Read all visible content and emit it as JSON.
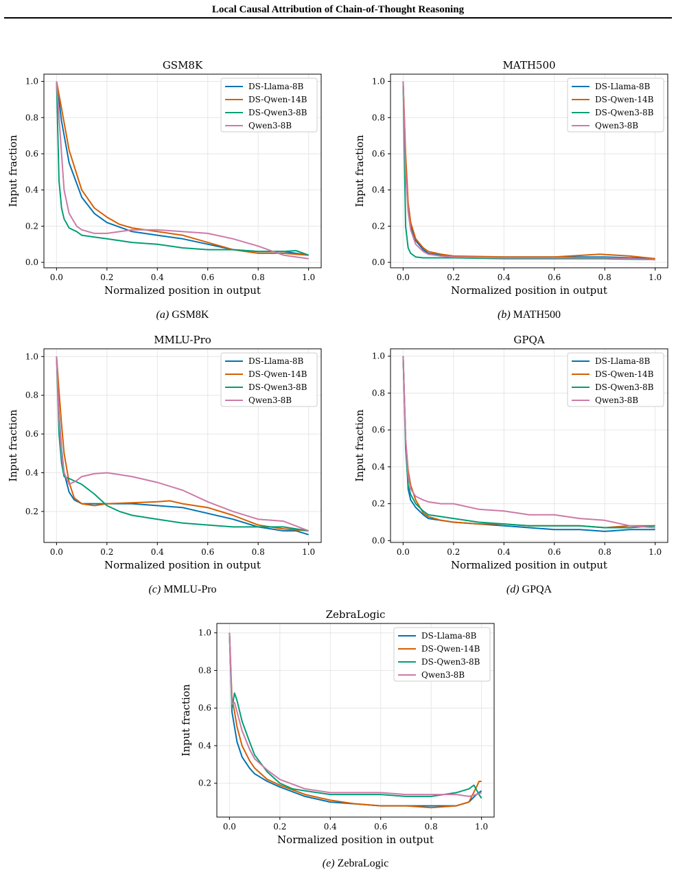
{
  "header": {
    "title": "Local Causal Attribution of Chain-of-Thought Reasoning"
  },
  "colors": {
    "DS-Llama-8B": "#0072b2",
    "DS-Qwen-14B": "#d55e00",
    "DS-Qwen3-8B": "#009e73",
    "Qwen3-8B": "#cc79a7"
  },
  "chart_data": [
    {
      "type": "line",
      "title": "GSM8K",
      "caption_letter": "(a)",
      "caption_text": "GSM8K",
      "xlabel": "Normalized position in output",
      "ylabel": "Input fraction",
      "xlim": [
        -0.05,
        1.05
      ],
      "ylim": [
        -0.03,
        1.04
      ],
      "xticks": [
        "0.0",
        "0.2",
        "0.4",
        "0.6",
        "0.8",
        "1.0"
      ],
      "yticks": [
        "0.0",
        "0.2",
        "0.4",
        "0.6",
        "0.8",
        "1.0"
      ],
      "grid": true,
      "legend": "top-right",
      "series": [
        {
          "name": "DS-Llama-8B",
          "x": [
            0,
            0.02,
            0.05,
            0.1,
            0.15,
            0.2,
            0.3,
            0.4,
            0.5,
            0.6,
            0.7,
            0.8,
            0.9,
            1.0
          ],
          "y": [
            1.0,
            0.78,
            0.55,
            0.36,
            0.27,
            0.22,
            0.17,
            0.15,
            0.13,
            0.1,
            0.07,
            0.06,
            0.06,
            0.04
          ]
        },
        {
          "name": "DS-Qwen-14B",
          "x": [
            0,
            0.02,
            0.05,
            0.1,
            0.15,
            0.2,
            0.25,
            0.3,
            0.4,
            0.5,
            0.6,
            0.7,
            0.8,
            0.9,
            1.0
          ],
          "y": [
            1.0,
            0.85,
            0.62,
            0.4,
            0.3,
            0.25,
            0.21,
            0.19,
            0.17,
            0.15,
            0.11,
            0.07,
            0.05,
            0.05,
            0.04
          ]
        },
        {
          "name": "DS-Qwen3-8B",
          "x": [
            0,
            0.01,
            0.02,
            0.03,
            0.05,
            0.08,
            0.1,
            0.15,
            0.2,
            0.3,
            0.4,
            0.5,
            0.6,
            0.7,
            0.8,
            0.9,
            0.95,
            1.0
          ],
          "y": [
            1.0,
            0.45,
            0.3,
            0.24,
            0.19,
            0.17,
            0.15,
            0.14,
            0.13,
            0.11,
            0.1,
            0.08,
            0.07,
            0.07,
            0.06,
            0.06,
            0.065,
            0.04
          ]
        },
        {
          "name": "Qwen3-8B",
          "x": [
            0,
            0.02,
            0.03,
            0.05,
            0.08,
            0.1,
            0.15,
            0.2,
            0.3,
            0.4,
            0.5,
            0.6,
            0.7,
            0.8,
            0.9,
            0.95,
            1.0
          ],
          "y": [
            1.0,
            0.6,
            0.4,
            0.27,
            0.2,
            0.18,
            0.16,
            0.16,
            0.18,
            0.18,
            0.17,
            0.16,
            0.13,
            0.09,
            0.04,
            0.03,
            0.02
          ]
        }
      ]
    },
    {
      "type": "line",
      "title": "MATH500",
      "caption_letter": "(b)",
      "caption_text": "MATH500",
      "xlabel": "Normalized position in output",
      "ylabel": "Input fraction",
      "xlim": [
        -0.05,
        1.05
      ],
      "ylim": [
        -0.03,
        1.04
      ],
      "xticks": [
        "0.0",
        "0.2",
        "0.4",
        "0.6",
        "0.8",
        "1.0"
      ],
      "yticks": [
        "0.0",
        "0.2",
        "0.4",
        "0.6",
        "0.8",
        "1.0"
      ],
      "grid": true,
      "legend": "top-right",
      "series": [
        {
          "name": "DS-Llama-8B",
          "x": [
            0,
            0.01,
            0.02,
            0.03,
            0.05,
            0.08,
            0.1,
            0.15,
            0.2,
            0.4,
            0.6,
            0.8,
            0.9,
            1.0
          ],
          "y": [
            1.0,
            0.55,
            0.3,
            0.2,
            0.12,
            0.07,
            0.05,
            0.04,
            0.03,
            0.03,
            0.03,
            0.03,
            0.025,
            0.02
          ]
        },
        {
          "name": "DS-Qwen-14B",
          "x": [
            0,
            0.01,
            0.02,
            0.03,
            0.05,
            0.08,
            0.1,
            0.15,
            0.2,
            0.4,
            0.6,
            0.78,
            0.9,
            1.0
          ],
          "y": [
            1.0,
            0.6,
            0.33,
            0.22,
            0.13,
            0.08,
            0.06,
            0.045,
            0.035,
            0.03,
            0.03,
            0.045,
            0.035,
            0.02
          ]
        },
        {
          "name": "DS-Qwen3-8B",
          "x": [
            0,
            0.01,
            0.02,
            0.03,
            0.05,
            0.08,
            0.1,
            0.2,
            0.4,
            0.6,
            0.8,
            1.0
          ],
          "y": [
            1.0,
            0.2,
            0.08,
            0.05,
            0.03,
            0.025,
            0.025,
            0.025,
            0.02,
            0.02,
            0.02,
            0.015
          ]
        },
        {
          "name": "Qwen3-8B",
          "x": [
            0,
            0.01,
            0.02,
            0.03,
            0.05,
            0.08,
            0.1,
            0.15,
            0.2,
            0.4,
            0.6,
            0.8,
            0.9,
            1.0
          ],
          "y": [
            1.0,
            0.5,
            0.28,
            0.18,
            0.1,
            0.06,
            0.045,
            0.035,
            0.03,
            0.025,
            0.025,
            0.025,
            0.02,
            0.015
          ]
        }
      ]
    },
    {
      "type": "line",
      "title": "MMLU-Pro",
      "caption_letter": "(c)",
      "caption_text": "MMLU-Pro",
      "xlabel": "Normalized position in output",
      "ylabel": "Input fraction",
      "xlim": [
        -0.05,
        1.05
      ],
      "ylim": [
        0.04,
        1.04
      ],
      "xticks": [
        "0.0",
        "0.2",
        "0.4",
        "0.6",
        "0.8",
        "1.0"
      ],
      "yticks": [
        "0.2",
        "0.4",
        "0.6",
        "0.8",
        "1.0"
      ],
      "grid": true,
      "legend": "top-right",
      "series": [
        {
          "name": "DS-Llama-8B",
          "x": [
            0,
            0.01,
            0.02,
            0.03,
            0.05,
            0.07,
            0.1,
            0.15,
            0.2,
            0.3,
            0.4,
            0.5,
            0.6,
            0.7,
            0.8,
            0.9,
            0.95,
            1.0
          ],
          "y": [
            1.0,
            0.7,
            0.52,
            0.4,
            0.3,
            0.26,
            0.24,
            0.24,
            0.24,
            0.24,
            0.23,
            0.22,
            0.19,
            0.16,
            0.12,
            0.1,
            0.1,
            0.08
          ]
        },
        {
          "name": "DS-Qwen-14B",
          "x": [
            0,
            0.01,
            0.02,
            0.03,
            0.05,
            0.07,
            0.1,
            0.15,
            0.2,
            0.3,
            0.4,
            0.45,
            0.5,
            0.6,
            0.7,
            0.8,
            0.9,
            1.0
          ],
          "y": [
            1.0,
            0.82,
            0.65,
            0.5,
            0.35,
            0.27,
            0.24,
            0.23,
            0.24,
            0.245,
            0.25,
            0.255,
            0.24,
            0.22,
            0.18,
            0.13,
            0.11,
            0.1
          ]
        },
        {
          "name": "DS-Qwen3-8B",
          "x": [
            0,
            0.01,
            0.02,
            0.03,
            0.05,
            0.1,
            0.15,
            0.2,
            0.25,
            0.3,
            0.4,
            0.5,
            0.6,
            0.7,
            0.8,
            0.9,
            1.0
          ],
          "y": [
            1.0,
            0.6,
            0.45,
            0.38,
            0.37,
            0.34,
            0.29,
            0.23,
            0.2,
            0.18,
            0.16,
            0.14,
            0.13,
            0.12,
            0.12,
            0.12,
            0.1
          ]
        },
        {
          "name": "Qwen3-8B",
          "x": [
            0,
            0.01,
            0.02,
            0.03,
            0.05,
            0.08,
            0.1,
            0.15,
            0.2,
            0.25,
            0.3,
            0.4,
            0.5,
            0.6,
            0.7,
            0.8,
            0.9,
            1.0
          ],
          "y": [
            1.0,
            0.68,
            0.5,
            0.4,
            0.34,
            0.36,
            0.38,
            0.395,
            0.4,
            0.39,
            0.38,
            0.35,
            0.31,
            0.25,
            0.2,
            0.16,
            0.15,
            0.1
          ]
        }
      ]
    },
    {
      "type": "line",
      "title": "GPQA",
      "caption_letter": "(d)",
      "caption_text": "GPQA",
      "xlabel": "Normalized position in output",
      "ylabel": "Input fraction",
      "xlim": [
        -0.05,
        1.05
      ],
      "ylim": [
        -0.01,
        1.04
      ],
      "xticks": [
        "0.0",
        "0.2",
        "0.4",
        "0.6",
        "0.8",
        "1.0"
      ],
      "yticks": [
        "0.0",
        "0.2",
        "0.4",
        "0.6",
        "0.8",
        "1.0"
      ],
      "grid": true,
      "legend": "top-right",
      "series": [
        {
          "name": "DS-Llama-8B",
          "x": [
            0,
            0.01,
            0.02,
            0.03,
            0.05,
            0.08,
            0.1,
            0.15,
            0.2,
            0.3,
            0.4,
            0.5,
            0.6,
            0.7,
            0.8,
            0.9,
            1.0
          ],
          "y": [
            1.0,
            0.55,
            0.28,
            0.22,
            0.18,
            0.14,
            0.12,
            0.11,
            0.1,
            0.09,
            0.08,
            0.07,
            0.06,
            0.06,
            0.05,
            0.06,
            0.06
          ]
        },
        {
          "name": "DS-Qwen-14B",
          "x": [
            0,
            0.01,
            0.02,
            0.03,
            0.05,
            0.08,
            0.1,
            0.15,
            0.2,
            0.3,
            0.4,
            0.5,
            0.6,
            0.7,
            0.8,
            0.9,
            1.0
          ],
          "y": [
            1.0,
            0.55,
            0.38,
            0.3,
            0.22,
            0.15,
            0.13,
            0.11,
            0.1,
            0.09,
            0.09,
            0.08,
            0.08,
            0.08,
            0.07,
            0.08,
            0.08
          ]
        },
        {
          "name": "DS-Qwen3-8B",
          "x": [
            0,
            0.01,
            0.02,
            0.03,
            0.05,
            0.08,
            0.1,
            0.15,
            0.2,
            0.3,
            0.4,
            0.5,
            0.6,
            0.7,
            0.8,
            0.9,
            1.0
          ],
          "y": [
            1.0,
            0.5,
            0.3,
            0.25,
            0.2,
            0.16,
            0.14,
            0.13,
            0.12,
            0.1,
            0.09,
            0.08,
            0.08,
            0.08,
            0.07,
            0.07,
            0.08
          ]
        },
        {
          "name": "Qwen3-8B",
          "x": [
            0,
            0.01,
            0.02,
            0.03,
            0.05,
            0.08,
            0.1,
            0.15,
            0.2,
            0.3,
            0.4,
            0.5,
            0.6,
            0.7,
            0.8,
            0.9,
            1.0
          ],
          "y": [
            1.0,
            0.55,
            0.35,
            0.28,
            0.24,
            0.22,
            0.21,
            0.2,
            0.2,
            0.17,
            0.16,
            0.14,
            0.14,
            0.12,
            0.11,
            0.08,
            0.07
          ]
        }
      ]
    },
    {
      "type": "line",
      "title": "ZebraLogic",
      "caption_letter": "(e)",
      "caption_text": "ZebraLogic",
      "xlabel": "Normalized position in output",
      "ylabel": "Input fraction",
      "xlim": [
        -0.05,
        1.05
      ],
      "ylim": [
        0.02,
        1.05
      ],
      "xticks": [
        "0.0",
        "0.2",
        "0.4",
        "0.6",
        "0.8",
        "1.0"
      ],
      "yticks": [
        "0.2",
        "0.4",
        "0.6",
        "0.8",
        "1.0"
      ],
      "grid": true,
      "legend": "top-right",
      "series": [
        {
          "name": "DS-Llama-8B",
          "x": [
            0,
            0.01,
            0.02,
            0.03,
            0.05,
            0.08,
            0.1,
            0.15,
            0.2,
            0.3,
            0.4,
            0.5,
            0.6,
            0.7,
            0.8,
            0.9,
            0.95,
            0.98,
            1.0
          ],
          "y": [
            1.0,
            0.58,
            0.5,
            0.42,
            0.34,
            0.28,
            0.25,
            0.21,
            0.18,
            0.13,
            0.1,
            0.09,
            0.08,
            0.08,
            0.08,
            0.08,
            0.1,
            0.14,
            0.16
          ]
        },
        {
          "name": "DS-Qwen-14B",
          "x": [
            0,
            0.01,
            0.02,
            0.03,
            0.05,
            0.08,
            0.1,
            0.15,
            0.2,
            0.3,
            0.4,
            0.5,
            0.6,
            0.7,
            0.8,
            0.9,
            0.95,
            0.98,
            0.99,
            1.0
          ],
          "y": [
            1.0,
            0.65,
            0.58,
            0.5,
            0.4,
            0.32,
            0.28,
            0.22,
            0.19,
            0.14,
            0.11,
            0.09,
            0.08,
            0.08,
            0.07,
            0.08,
            0.1,
            0.18,
            0.21,
            0.21
          ]
        },
        {
          "name": "DS-Qwen3-8B",
          "x": [
            0,
            0.01,
            0.02,
            0.03,
            0.05,
            0.08,
            0.1,
            0.15,
            0.2,
            0.25,
            0.3,
            0.4,
            0.5,
            0.6,
            0.7,
            0.8,
            0.9,
            0.95,
            0.97,
            0.99,
            1.0
          ],
          "y": [
            1.0,
            0.6,
            0.68,
            0.64,
            0.53,
            0.42,
            0.35,
            0.26,
            0.2,
            0.17,
            0.16,
            0.14,
            0.14,
            0.14,
            0.13,
            0.13,
            0.15,
            0.17,
            0.19,
            0.14,
            0.12
          ]
        },
        {
          "name": "Qwen3-8B",
          "x": [
            0,
            0.01,
            0.02,
            0.03,
            0.05,
            0.08,
            0.1,
            0.15,
            0.2,
            0.3,
            0.4,
            0.5,
            0.6,
            0.7,
            0.8,
            0.9,
            0.95,
            0.98,
            1.0
          ],
          "y": [
            1.0,
            0.62,
            0.63,
            0.58,
            0.48,
            0.38,
            0.33,
            0.27,
            0.22,
            0.17,
            0.15,
            0.15,
            0.15,
            0.14,
            0.14,
            0.14,
            0.13,
            0.14,
            0.15
          ]
        }
      ]
    }
  ]
}
